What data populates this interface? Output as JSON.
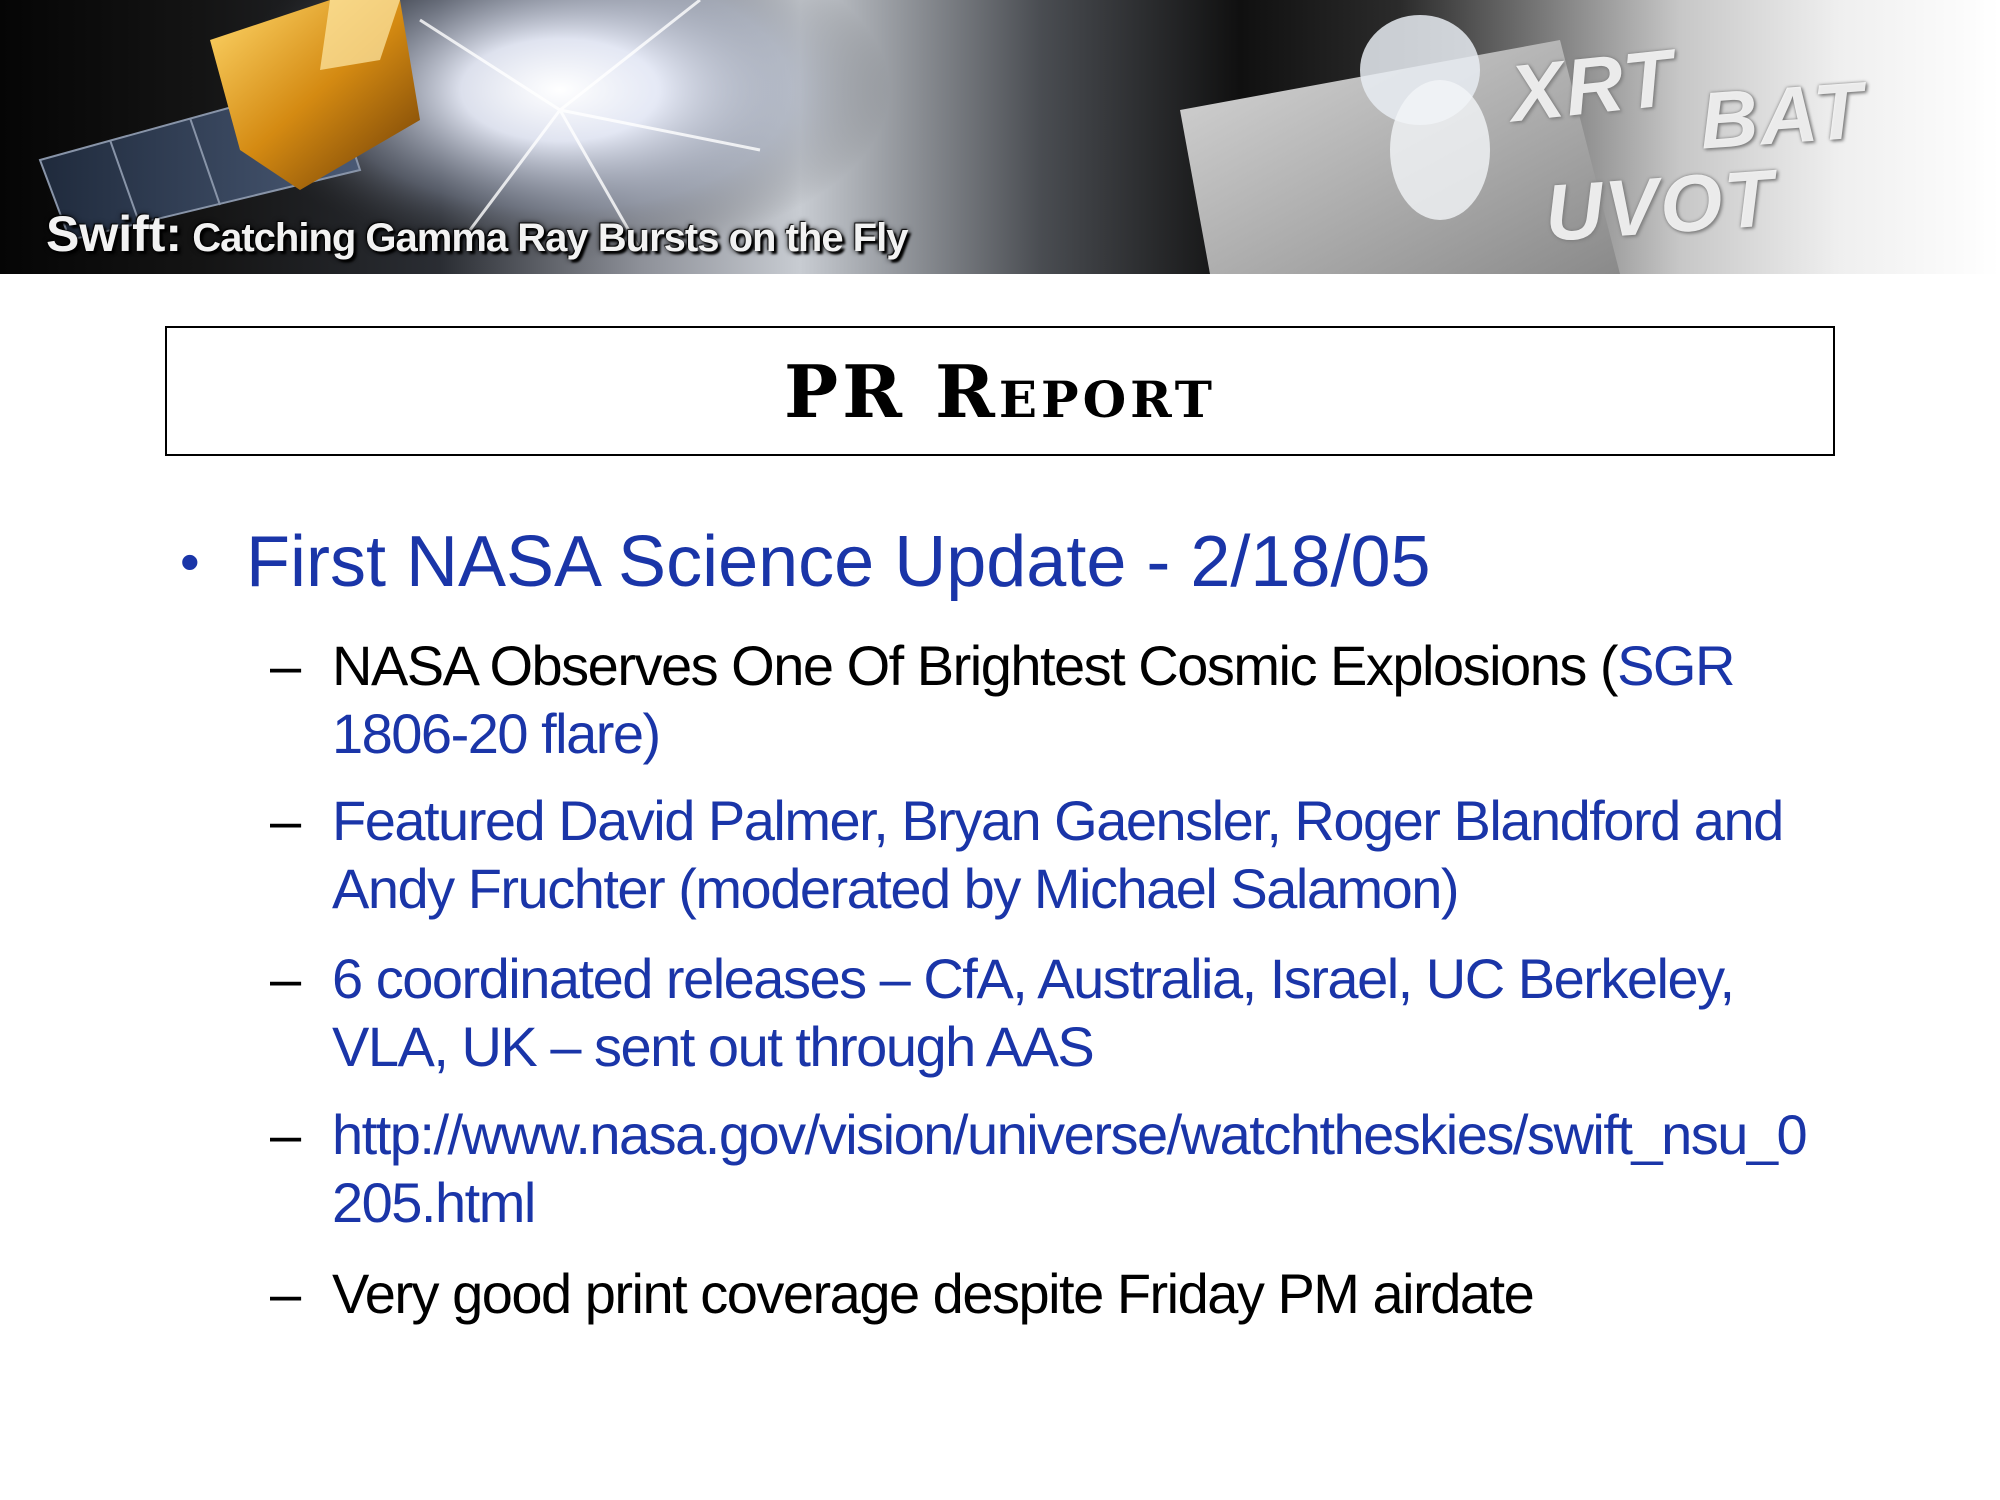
{
  "banner": {
    "title_lead": "Swift:",
    "title_rest": " Catching Gamma Ray Bursts on the Fly",
    "instruments": [
      "XRT",
      "BAT",
      "UVOT"
    ]
  },
  "slide": {
    "title": "PR Report",
    "bullet": "First NASA Science Update - 2/18/05",
    "sub_items": [
      {
        "dash": "–",
        "text_black": "NASA Observes One Of Brightest Cosmic Explosions (",
        "text_blue": "SGR 1806-20 flare)"
      },
      {
        "dash": "–",
        "text_blue": "Featured David Palmer, Bryan Gaensler, Roger Blandford and Andy Fruchter (moderated by Michael Salamon)"
      },
      {
        "dash": "–",
        "text_blue": "6 coordinated releases – CfA, Australia, Israel, UC Berkeley, VLA, UK – sent out through AAS"
      },
      {
        "dash": "–",
        "text_blue": "http://www.nasa.gov/vision/universe/watchtheskies/swift_nsu_0205.html"
      },
      {
        "dash": "–",
        "text_black": "Very good print coverage despite Friday PM airdate"
      }
    ]
  },
  "colors": {
    "accent_blue": "#1a35a8",
    "text_black": "#000000"
  },
  "icons": [
    "bullet-dot-icon",
    "dash-icon"
  ]
}
